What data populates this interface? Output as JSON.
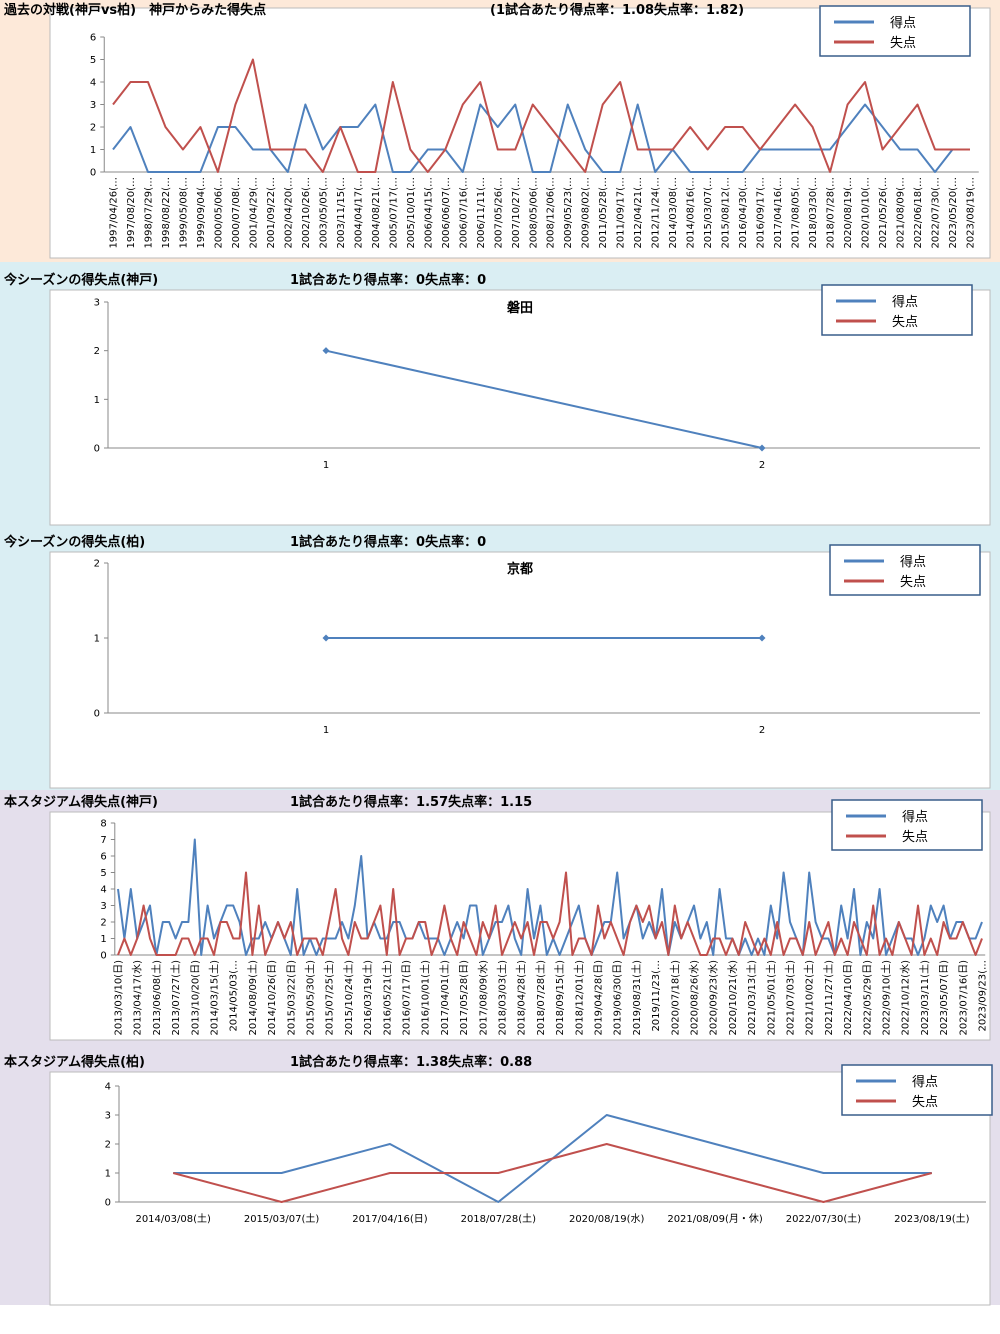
{
  "chart_data": [
    {
      "type": "line",
      "title": "過去の対戦(神戸vs柏)　神戸からみた得失点",
      "subtitle": "(1試合あたり得点率：1.08失点率：1.82)",
      "legend": "upper right",
      "grid": false,
      "categories": [
        "1997/04/26(…",
        "1997/08/20(…",
        "1998/07/29(…",
        "1998/08/22(…",
        "1999/05/08(…",
        "1999/09/04(…",
        "2000/05/06(…",
        "2000/07/08(…",
        "2001/04/29(…",
        "2001/09/22(…",
        "2002/04/20(…",
        "2002/10/26(…",
        "2003/05/05(…",
        "2003/11/15(…",
        "2004/04/17(…",
        "2004/08/21(…",
        "2005/07/17(…",
        "2005/10/01(…",
        "2006/04/15(…",
        "2006/06/07(…",
        "2006/07/16(…",
        "2006/11/11(…",
        "2007/05/26(…",
        "2007/10/27(…",
        "2008/05/06(…",
        "2008/12/06(…",
        "2009/05/23(…",
        "2009/08/02(…",
        "2011/05/28(…",
        "2011/09/17(…",
        "2012/04/21(…",
        "2012/11/24(…",
        "2014/03/08(…",
        "2014/08/16(…",
        "2015/03/07(…",
        "2015/08/12(…",
        "2016/04/30(…",
        "2016/09/17(…",
        "2017/04/16(…",
        "2017/08/05(…",
        "2018/03/30(…",
        "2018/07/28(…",
        "2020/08/19(…",
        "2020/10/10(…",
        "2021/05/26(…",
        "2021/08/09(…",
        "2022/06/18(…",
        "2022/07/30(…",
        "2023/05/20(…",
        "2023/08/19(…"
      ],
      "series": [
        {
          "name": "得点",
          "color": "#4f81bd",
          "values": [
            1,
            2,
            0,
            0,
            0,
            0,
            2,
            2,
            1,
            1,
            0,
            3,
            1,
            2,
            2,
            3,
            0,
            0,
            1,
            1,
            0,
            3,
            2,
            3,
            0,
            0,
            3,
            1,
            0,
            0,
            3,
            0,
            1,
            0,
            0,
            0,
            0,
            1,
            1,
            1,
            1,
            1,
            2,
            3,
            2,
            1,
            1,
            0,
            1,
            1
          ]
        },
        {
          "name": "失点",
          "color": "#c0504d",
          "values": [
            3,
            4,
            4,
            2,
            1,
            2,
            0,
            3,
            5,
            1,
            1,
            1,
            0,
            2,
            0,
            0,
            4,
            1,
            0,
            1,
            3,
            4,
            1,
            1,
            3,
            2,
            1,
            0,
            3,
            4,
            1,
            1,
            1,
            2,
            1,
            2,
            2,
            1,
            2,
            3,
            2,
            0,
            3,
            4,
            1,
            2,
            3,
            1,
            1,
            1
          ]
        }
      ],
      "ylim": [
        0,
        6
      ],
      "yticks": [
        0,
        1,
        2,
        3,
        4,
        5,
        6
      ]
    },
    {
      "type": "line",
      "title": "今シーズンの得失点(神戸)",
      "subtitle": "1試合あたり得点率：0失点率：0",
      "plot_title": "磐田",
      "legend": "upper right",
      "grid": false,
      "markers": true,
      "categories": [
        1,
        2
      ],
      "series": [
        {
          "name": "得点",
          "color": "#4f81bd",
          "values": [
            2,
            0
          ]
        },
        {
          "name": "失点",
          "color": "#c0504d",
          "values": [
            null,
            null
          ]
        }
      ],
      "ylim": [
        0,
        3
      ],
      "yticks": [
        0,
        1,
        2,
        3
      ]
    },
    {
      "type": "line",
      "title": "今シーズンの得失点(柏)",
      "subtitle": "1試合あたり得点率：0失点率：0",
      "plot_title": "京都",
      "legend": "upper right",
      "grid": false,
      "markers": true,
      "categories": [
        1,
        2
      ],
      "series": [
        {
          "name": "得点",
          "color": "#4f81bd",
          "values": [
            1,
            1
          ]
        },
        {
          "name": "失点",
          "color": "#c0504d",
          "values": [
            null,
            null
          ]
        }
      ],
      "ylim": [
        0,
        2
      ],
      "yticks": [
        0,
        1,
        2
      ]
    },
    {
      "type": "line",
      "title": "本スタジアム得失点(神戸)",
      "subtitle": "1試合あたり得点率：1.57失点率：1.15",
      "legend": "upper right",
      "grid": false,
      "categories": [
        "2013/03/10(日)",
        null,
        null,
        "2013/04/17(水)",
        null,
        null,
        "2013/06/08(土)",
        null,
        null,
        "2013/07/27(土)",
        null,
        null,
        "2013/10/20(日)",
        null,
        null,
        "2014/03/15(土)",
        null,
        null,
        "2014/05/03(…",
        null,
        null,
        "2014/08/09(土)",
        null,
        null,
        "2014/10/26(日)",
        null,
        null,
        "2015/03/22(日)",
        null,
        null,
        "2015/05/30(土)",
        null,
        null,
        "2015/07/25(土)",
        null,
        null,
        "2015/10/24(土)",
        null,
        null,
        "2016/03/19(土)",
        null,
        null,
        "2016/05/21(土)",
        null,
        null,
        "2016/07/17(日)",
        null,
        null,
        "2016/10/01(土)",
        null,
        null,
        "2017/04/01(土)",
        null,
        null,
        "2017/05/28(日)",
        null,
        null,
        "2017/08/09(水)",
        null,
        null,
        "2018/03/03(土)",
        null,
        null,
        "2018/04/28(土)",
        null,
        null,
        "2018/07/28(土)",
        null,
        null,
        "2018/09/15(土)",
        null,
        null,
        "2018/12/01(土)",
        null,
        null,
        "2019/04/28(日)",
        null,
        null,
        "2019/06/30(日)",
        null,
        null,
        "2019/08/31(土)",
        null,
        null,
        "2019/11/23(…",
        null,
        null,
        "2020/07/18(土)",
        null,
        null,
        "2020/08/26(水)",
        null,
        null,
        "2020/09/23(水)",
        null,
        null,
        "2020/10/21(水)",
        null,
        null,
        "2021/03/13(土)",
        null,
        null,
        "2021/05/01(土)",
        null,
        null,
        "2021/07/03(土)",
        null,
        null,
        "2021/10/02(土)",
        null,
        null,
        "2021/11/27(土)",
        null,
        null,
        "2022/04/10(日)",
        null,
        null,
        "2022/05/29(日)",
        null,
        null,
        "2022/09/10(土)",
        null,
        null,
        "2022/10/12(水)",
        null,
        null,
        "2023/03/11(土)",
        null,
        null,
        "2023/05/07(日)",
        null,
        null,
        "2023/07/16(日)",
        null,
        null,
        "2023/09/23(…"
      ],
      "series": [
        {
          "name": "得点",
          "color": "#4f81bd",
          "values": [
            4,
            1,
            4,
            1,
            2,
            3,
            0,
            2,
            2,
            1,
            2,
            2,
            7,
            0,
            3,
            1,
            2,
            3,
            3,
            2,
            0,
            1,
            1,
            2,
            1,
            2,
            1,
            0,
            4,
            0,
            1,
            0,
            1,
            1,
            1,
            2,
            1,
            3,
            6,
            1,
            2,
            1,
            1,
            2,
            2,
            1,
            1,
            2,
            1,
            1,
            1,
            0,
            1,
            2,
            1,
            3,
            3,
            0,
            1,
            2,
            2,
            3,
            1,
            0,
            4,
            1,
            3,
            0,
            1,
            0,
            1,
            2,
            3,
            1,
            0,
            1,
            2,
            2,
            5,
            1,
            2,
            3,
            1,
            2,
            1,
            4,
            0,
            2,
            1,
            2,
            3,
            1,
            2,
            0,
            4,
            1,
            1,
            0,
            1,
            0,
            1,
            0,
            3,
            1,
            5,
            2,
            1,
            0,
            5,
            2,
            1,
            1,
            0,
            3,
            1,
            4,
            0,
            2,
            1,
            4,
            0,
            1,
            2,
            1,
            1,
            0,
            1,
            3,
            2,
            3,
            1,
            2,
            2,
            1,
            1,
            2
          ]
        },
        {
          "name": "失点",
          "color": "#c0504d",
          "values": [
            0,
            1,
            0,
            1,
            3,
            1,
            0,
            0,
            0,
            0,
            1,
            1,
            0,
            1,
            1,
            0,
            2,
            2,
            1,
            1,
            5,
            0,
            3,
            0,
            1,
            2,
            1,
            2,
            0,
            1,
            1,
            1,
            0,
            2,
            4,
            1,
            0,
            2,
            1,
            1,
            2,
            3,
            0,
            4,
            0,
            1,
            1,
            2,
            2,
            0,
            1,
            3,
            1,
            0,
            2,
            1,
            0,
            2,
            1,
            3,
            0,
            1,
            2,
            1,
            2,
            0,
            2,
            2,
            1,
            2,
            5,
            0,
            1,
            1,
            0,
            3,
            1,
            2,
            1,
            0,
            2,
            3,
            2,
            3,
            1,
            2,
            0,
            3,
            1,
            2,
            1,
            0,
            0,
            1,
            1,
            0,
            1,
            0,
            2,
            1,
            0,
            1,
            0,
            2,
            0,
            1,
            1,
            0,
            2,
            0,
            1,
            2,
            0,
            1,
            0,
            2,
            1,
            0,
            3,
            0,
            1,
            0,
            2,
            1,
            0,
            3,
            0,
            1,
            0,
            2,
            1,
            1,
            2,
            1,
            0,
            1
          ]
        }
      ],
      "ylim": [
        0,
        8
      ],
      "yticks": [
        0,
        1,
        2,
        3,
        4,
        5,
        6,
        7,
        8
      ]
    },
    {
      "type": "line",
      "title": "本スタジアム得失点(柏)",
      "subtitle": "1試合あたり得点率：1.38失点率：0.88",
      "legend": "upper right",
      "grid": false,
      "categories": [
        "2014/03/08(土)",
        "2015/03/07(土)",
        "2017/04/16(日)",
        "2018/07/28(土)",
        "2020/08/19(水)",
        "2021/08/09(月・休)",
        "2022/07/30(土)",
        "2023/08/19(土)"
      ],
      "series": [
        {
          "name": "得点",
          "color": "#4f81bd",
          "values": [
            1,
            1,
            2,
            0,
            3,
            2,
            1,
            1
          ]
        },
        {
          "name": "失点",
          "color": "#c0504d",
          "values": [
            1,
            0,
            1,
            1,
            2,
            1,
            0,
            1
          ]
        }
      ],
      "ylim": [
        0,
        4
      ],
      "yticks": [
        0,
        1,
        2,
        3,
        4
      ]
    }
  ]
}
